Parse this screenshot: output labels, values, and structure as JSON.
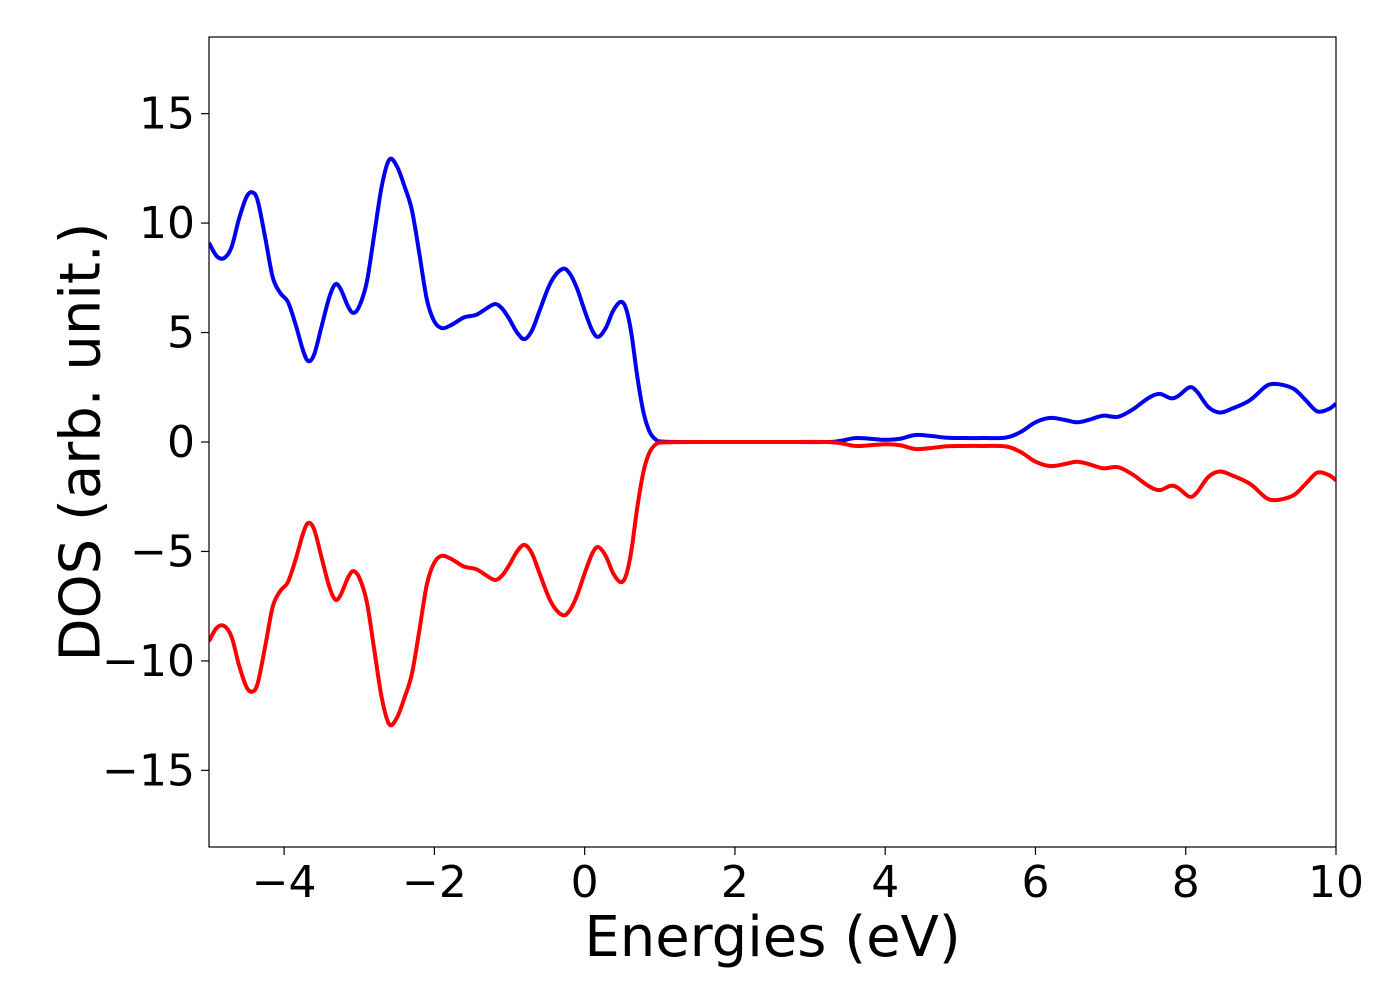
{
  "chart_data": {
    "type": "line",
    "title": "",
    "xlabel": "Energies (eV)",
    "ylabel": "DOS (arb. unit.)",
    "xlim": [
      -5,
      10
    ],
    "ylim": [
      -18.5,
      18.5
    ],
    "xticks": [
      -4,
      -2,
      0,
      2,
      4,
      6,
      8,
      10
    ],
    "yticks": [
      -15,
      -10,
      -5,
      0,
      5,
      10,
      15
    ],
    "grid": false,
    "legend": "none",
    "series": [
      {
        "color": "#0000ee",
        "points": [
          [
            -5.0,
            9.1
          ],
          [
            -4.9,
            8.5
          ],
          [
            -4.8,
            8.4
          ],
          [
            -4.7,
            8.9
          ],
          [
            -4.6,
            10.2
          ],
          [
            -4.5,
            11.2
          ],
          [
            -4.42,
            11.4
          ],
          [
            -4.35,
            11.0
          ],
          [
            -4.25,
            9.3
          ],
          [
            -4.15,
            7.5
          ],
          [
            -4.05,
            6.8
          ],
          [
            -3.95,
            6.4
          ],
          [
            -3.85,
            5.4
          ],
          [
            -3.75,
            4.2
          ],
          [
            -3.68,
            3.7
          ],
          [
            -3.6,
            4.0
          ],
          [
            -3.5,
            5.3
          ],
          [
            -3.4,
            6.6
          ],
          [
            -3.32,
            7.2
          ],
          [
            -3.25,
            7.0
          ],
          [
            -3.15,
            6.2
          ],
          [
            -3.08,
            5.9
          ],
          [
            -3.0,
            6.2
          ],
          [
            -2.9,
            7.3
          ],
          [
            -2.8,
            9.5
          ],
          [
            -2.7,
            11.7
          ],
          [
            -2.6,
            12.9
          ],
          [
            -2.5,
            12.6
          ],
          [
            -2.4,
            11.7
          ],
          [
            -2.3,
            10.6
          ],
          [
            -2.2,
            8.6
          ],
          [
            -2.1,
            6.5
          ],
          [
            -2.0,
            5.5
          ],
          [
            -1.9,
            5.2
          ],
          [
            -1.8,
            5.3
          ],
          [
            -1.7,
            5.5
          ],
          [
            -1.6,
            5.7
          ],
          [
            -1.45,
            5.8
          ],
          [
            -1.35,
            6.0
          ],
          [
            -1.2,
            6.3
          ],
          [
            -1.1,
            6.1
          ],
          [
            -1.0,
            5.6
          ],
          [
            -0.9,
            5.0
          ],
          [
            -0.8,
            4.7
          ],
          [
            -0.7,
            5.1
          ],
          [
            -0.6,
            6.0
          ],
          [
            -0.45,
            7.3
          ],
          [
            -0.3,
            7.9
          ],
          [
            -0.2,
            7.7
          ],
          [
            -0.1,
            7.0
          ],
          [
            0.0,
            6.0
          ],
          [
            0.1,
            5.1
          ],
          [
            0.18,
            4.8
          ],
          [
            0.28,
            5.2
          ],
          [
            0.38,
            6.0
          ],
          [
            0.48,
            6.4
          ],
          [
            0.55,
            6.1
          ],
          [
            0.62,
            5.0
          ],
          [
            0.7,
            3.0
          ],
          [
            0.78,
            1.4
          ],
          [
            0.86,
            0.5
          ],
          [
            0.95,
            0.1
          ],
          [
            1.05,
            0.02
          ],
          [
            1.5,
            0.0
          ],
          [
            2.5,
            0.0
          ],
          [
            3.2,
            0.0
          ],
          [
            3.4,
            0.05
          ],
          [
            3.6,
            0.18
          ],
          [
            3.8,
            0.15
          ],
          [
            4.0,
            0.1
          ],
          [
            4.2,
            0.15
          ],
          [
            4.4,
            0.32
          ],
          [
            4.6,
            0.28
          ],
          [
            4.8,
            0.2
          ],
          [
            5.0,
            0.18
          ],
          [
            5.3,
            0.18
          ],
          [
            5.6,
            0.2
          ],
          [
            5.8,
            0.45
          ],
          [
            6.0,
            0.9
          ],
          [
            6.2,
            1.1
          ],
          [
            6.4,
            1.0
          ],
          [
            6.55,
            0.9
          ],
          [
            6.7,
            1.0
          ],
          [
            6.9,
            1.2
          ],
          [
            7.1,
            1.15
          ],
          [
            7.3,
            1.5
          ],
          [
            7.5,
            2.0
          ],
          [
            7.65,
            2.2
          ],
          [
            7.8,
            2.0
          ],
          [
            7.9,
            2.1
          ],
          [
            8.05,
            2.5
          ],
          [
            8.15,
            2.3
          ],
          [
            8.3,
            1.6
          ],
          [
            8.45,
            1.35
          ],
          [
            8.6,
            1.5
          ],
          [
            8.85,
            1.9
          ],
          [
            9.05,
            2.5
          ],
          [
            9.15,
            2.65
          ],
          [
            9.3,
            2.6
          ],
          [
            9.45,
            2.4
          ],
          [
            9.6,
            1.9
          ],
          [
            9.75,
            1.4
          ],
          [
            9.9,
            1.5
          ],
          [
            10.0,
            1.75
          ]
        ]
      },
      {
        "color": "#ff0000",
        "points": [
          [
            -5.0,
            -9.1
          ],
          [
            -4.9,
            -8.5
          ],
          [
            -4.8,
            -8.4
          ],
          [
            -4.7,
            -8.9
          ],
          [
            -4.6,
            -10.2
          ],
          [
            -4.5,
            -11.2
          ],
          [
            -4.42,
            -11.4
          ],
          [
            -4.35,
            -11.0
          ],
          [
            -4.25,
            -9.3
          ],
          [
            -4.15,
            -7.5
          ],
          [
            -4.05,
            -6.8
          ],
          [
            -3.95,
            -6.4
          ],
          [
            -3.85,
            -5.4
          ],
          [
            -3.75,
            -4.2
          ],
          [
            -3.68,
            -3.7
          ],
          [
            -3.6,
            -4.0
          ],
          [
            -3.5,
            -5.3
          ],
          [
            -3.4,
            -6.6
          ],
          [
            -3.32,
            -7.2
          ],
          [
            -3.25,
            -7.0
          ],
          [
            -3.15,
            -6.2
          ],
          [
            -3.08,
            -5.9
          ],
          [
            -3.0,
            -6.2
          ],
          [
            -2.9,
            -7.3
          ],
          [
            -2.8,
            -9.5
          ],
          [
            -2.7,
            -11.7
          ],
          [
            -2.6,
            -12.9
          ],
          [
            -2.5,
            -12.6
          ],
          [
            -2.4,
            -11.7
          ],
          [
            -2.3,
            -10.6
          ],
          [
            -2.2,
            -8.6
          ],
          [
            -2.1,
            -6.5
          ],
          [
            -2.0,
            -5.5
          ],
          [
            -1.9,
            -5.2
          ],
          [
            -1.8,
            -5.3
          ],
          [
            -1.7,
            -5.5
          ],
          [
            -1.6,
            -5.7
          ],
          [
            -1.45,
            -5.8
          ],
          [
            -1.35,
            -6.0
          ],
          [
            -1.2,
            -6.3
          ],
          [
            -1.1,
            -6.1
          ],
          [
            -1.0,
            -5.6
          ],
          [
            -0.9,
            -5.0
          ],
          [
            -0.8,
            -4.7
          ],
          [
            -0.7,
            -5.1
          ],
          [
            -0.6,
            -6.0
          ],
          [
            -0.45,
            -7.3
          ],
          [
            -0.3,
            -7.9
          ],
          [
            -0.2,
            -7.7
          ],
          [
            -0.1,
            -7.0
          ],
          [
            0.0,
            -6.0
          ],
          [
            0.1,
            -5.1
          ],
          [
            0.18,
            -4.8
          ],
          [
            0.28,
            -5.2
          ],
          [
            0.38,
            -6.0
          ],
          [
            0.48,
            -6.4
          ],
          [
            0.55,
            -6.1
          ],
          [
            0.62,
            -5.0
          ],
          [
            0.7,
            -3.0
          ],
          [
            0.78,
            -1.4
          ],
          [
            0.86,
            -0.5
          ],
          [
            0.95,
            -0.1
          ],
          [
            1.05,
            -0.02
          ],
          [
            1.5,
            0.0
          ],
          [
            2.5,
            0.0
          ],
          [
            3.2,
            0.0
          ],
          [
            3.4,
            -0.05
          ],
          [
            3.6,
            -0.18
          ],
          [
            3.8,
            -0.15
          ],
          [
            4.0,
            -0.1
          ],
          [
            4.2,
            -0.15
          ],
          [
            4.4,
            -0.32
          ],
          [
            4.6,
            -0.28
          ],
          [
            4.8,
            -0.2
          ],
          [
            5.0,
            -0.18
          ],
          [
            5.3,
            -0.18
          ],
          [
            5.6,
            -0.2
          ],
          [
            5.8,
            -0.45
          ],
          [
            6.0,
            -0.9
          ],
          [
            6.2,
            -1.1
          ],
          [
            6.4,
            -1.0
          ],
          [
            6.55,
            -0.9
          ],
          [
            6.7,
            -1.0
          ],
          [
            6.9,
            -1.2
          ],
          [
            7.1,
            -1.15
          ],
          [
            7.3,
            -1.5
          ],
          [
            7.5,
            -2.0
          ],
          [
            7.65,
            -2.2
          ],
          [
            7.8,
            -2.0
          ],
          [
            7.9,
            -2.1
          ],
          [
            8.05,
            -2.5
          ],
          [
            8.15,
            -2.3
          ],
          [
            8.3,
            -1.6
          ],
          [
            8.45,
            -1.35
          ],
          [
            8.6,
            -1.5
          ],
          [
            8.85,
            -1.9
          ],
          [
            9.05,
            -2.5
          ],
          [
            9.15,
            -2.65
          ],
          [
            9.3,
            -2.6
          ],
          [
            9.45,
            -2.4
          ],
          [
            9.6,
            -1.9
          ],
          [
            9.75,
            -1.4
          ],
          [
            9.9,
            -1.5
          ],
          [
            10.0,
            -1.75
          ]
        ]
      }
    ]
  }
}
